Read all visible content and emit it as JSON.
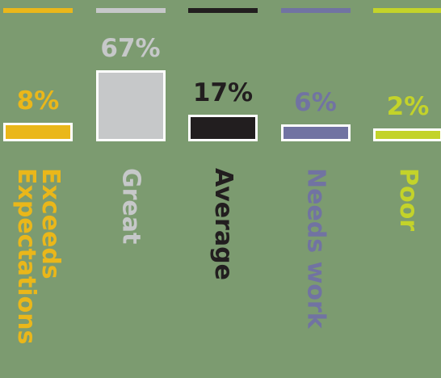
{
  "chart_data": {
    "type": "bar",
    "categories": [
      "Exceeds\nExpectations",
      "Great",
      "Average",
      "Needs work",
      "Poor"
    ],
    "values": [
      8,
      67,
      17,
      6,
      2
    ],
    "value_labels": [
      "8%",
      "67%",
      "17%",
      "6%",
      "2%"
    ],
    "colors": [
      "#eab71a",
      "#c6c8c9",
      "#221e1f",
      "#7173a2",
      "#c3d32a"
    ],
    "title": "",
    "xlabel": "",
    "ylabel": "",
    "ylim": [
      0,
      67
    ],
    "grid": false,
    "legend": "none"
  }
}
